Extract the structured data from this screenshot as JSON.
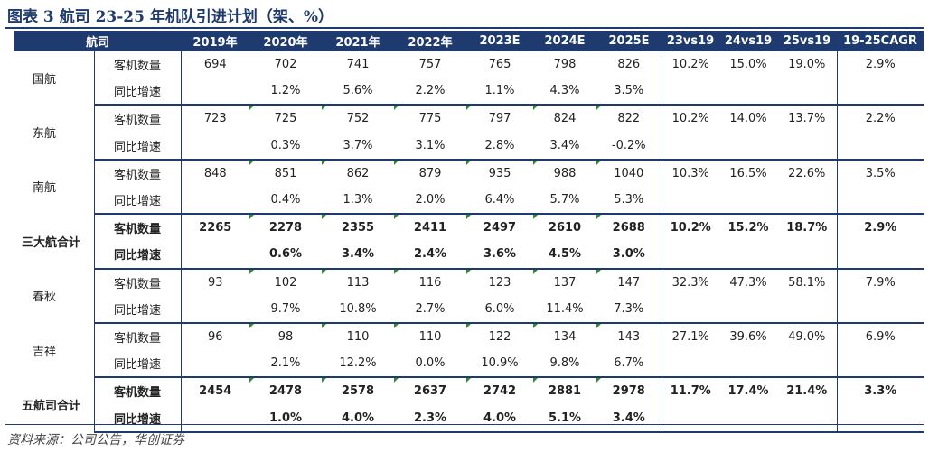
{
  "title": "图表 3  航司 23-25 年机队引进计划（架、%）",
  "source": "资料来源：公司公告，华创证券",
  "headers": [
    "航司",
    "2019年",
    "2020年",
    "2021年",
    "2022年",
    "2023E",
    "2024E",
    "2025E",
    "23vs19",
    "24vs19",
    "25vs19",
    "19-25CAGR"
  ],
  "groups": [
    {
      "airline": "国航",
      "total": false,
      "fleet_label": "客机数量",
      "growth_label": "同比增速",
      "fleet": [
        "694",
        "702",
        "741",
        "757",
        "765",
        "798",
        "826"
      ],
      "growth": [
        "",
        "1.2%",
        "5.6%",
        "2.2%",
        "1.1%",
        "4.3%",
        "3.5%"
      ],
      "compare": [
        "10.2%",
        "15.0%",
        "19.0%",
        "2.9%"
      ]
    },
    {
      "airline": "东航",
      "total": false,
      "fleet_label": "客机数量",
      "growth_label": "同比增速",
      "fleet": [
        "723",
        "725",
        "752",
        "775",
        "797",
        "824",
        "822"
      ],
      "growth": [
        "",
        "0.3%",
        "3.7%",
        "3.1%",
        "2.8%",
        "3.4%",
        "-0.2%"
      ],
      "compare": [
        "10.2%",
        "14.0%",
        "13.7%",
        "2.2%"
      ]
    },
    {
      "airline": "南航",
      "total": false,
      "fleet_label": "客机数量",
      "growth_label": "同比增速",
      "fleet": [
        "848",
        "851",
        "862",
        "879",
        "935",
        "988",
        "1040"
      ],
      "growth": [
        "",
        "0.4%",
        "1.3%",
        "2.0%",
        "6.4%",
        "5.7%",
        "5.3%"
      ],
      "compare": [
        "10.3%",
        "16.5%",
        "22.6%",
        "3.5%"
      ]
    },
    {
      "airline": "三大航合计",
      "total": true,
      "fleet_label": "客机数量",
      "growth_label": "同比增速",
      "fleet": [
        "2265",
        "2278",
        "2355",
        "2411",
        "2497",
        "2610",
        "2688"
      ],
      "growth": [
        "",
        "0.6%",
        "3.4%",
        "2.4%",
        "3.6%",
        "4.5%",
        "3.0%"
      ],
      "compare": [
        "10.2%",
        "15.2%",
        "18.7%",
        "2.9%"
      ]
    },
    {
      "airline": "春秋",
      "total": false,
      "fleet_label": "客机数量",
      "growth_label": "同比增速",
      "fleet": [
        "93",
        "102",
        "113",
        "116",
        "123",
        "137",
        "147"
      ],
      "growth": [
        "",
        "9.7%",
        "10.8%",
        "2.7%",
        "6.0%",
        "11.4%",
        "7.3%"
      ],
      "compare": [
        "32.3%",
        "47.3%",
        "58.1%",
        "7.9%"
      ]
    },
    {
      "airline": "吉祥",
      "total": false,
      "fleet_label": "客机数量",
      "growth_label": "同比增速",
      "fleet": [
        "96",
        "98",
        "110",
        "110",
        "122",
        "134",
        "143"
      ],
      "growth": [
        "",
        "2.1%",
        "12.2%",
        "0.0%",
        "10.9%",
        "9.8%",
        "6.7%"
      ],
      "compare": [
        "27.1%",
        "39.6%",
        "49.0%",
        "6.9%"
      ]
    },
    {
      "airline": "五航司合计",
      "total": true,
      "fleet_label": "客机数量",
      "growth_label": "同比增速",
      "fleet": [
        "2454",
        "2478",
        "2578",
        "2637",
        "2742",
        "2881",
        "2978"
      ],
      "growth": [
        "",
        "1.0%",
        "4.0%",
        "2.3%",
        "4.0%",
        "5.1%",
        "3.4%"
      ],
      "compare": [
        "11.7%",
        "17.4%",
        "21.4%",
        "3.3%"
      ]
    }
  ]
}
